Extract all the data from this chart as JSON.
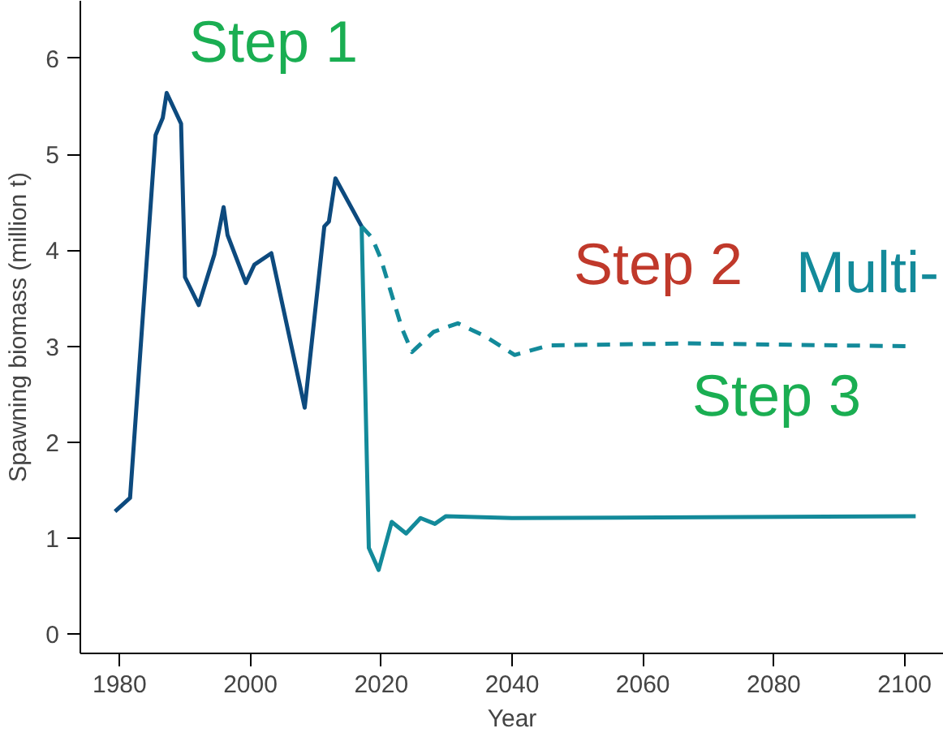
{
  "chart_data": {
    "type": "line",
    "xlabel": "Year",
    "ylabel": "Spawning biomass (million t)",
    "xlim": [
      1974,
      2106
    ],
    "ylim": [
      -0.2,
      6.6
    ],
    "xticks": [
      1980,
      2000,
      2020,
      2040,
      2060,
      2080,
      2100
    ],
    "yticks": [
      0,
      1,
      2,
      3,
      4,
      5,
      6
    ],
    "grid": false,
    "marker": "none",
    "series": [
      {
        "color": "#0d4a7e",
        "line_style": "solid",
        "x": [
          1979.3,
          1981.6,
          1985.5,
          1986.6,
          1987.2,
          1989.4,
          1990.0,
          1992.1,
          1994.5,
          1995.9,
          1996.5,
          1999.3,
          2000.6,
          2003.2,
          2008.3,
          2011.3,
          2012.0,
          2013.0,
          2017.0
        ],
        "values": [
          1.28,
          1.42,
          5.2,
          5.38,
          5.64,
          5.32,
          3.72,
          3.43,
          3.96,
          4.45,
          4.16,
          3.66,
          3.85,
          3.97,
          2.36,
          4.25,
          4.3,
          4.75,
          4.25
        ]
      },
      {
        "color": "#138a9a",
        "line_style": "dashed",
        "x": [
          2017.0,
          2018.6,
          2019.9,
          2023.2,
          2024.7,
          2028.0,
          2031.7,
          2036.0,
          2040.4,
          2045.7,
          2066.7,
          2100.9
        ],
        "values": [
          4.25,
          4.13,
          3.92,
          3.18,
          2.94,
          3.15,
          3.24,
          3.1,
          2.91,
          3.01,
          3.03,
          3.0
        ]
      },
      {
        "color": "#138a9a",
        "line_style": "solid",
        "x": [
          2017.0,
          2018.1,
          2019.6,
          2021.6,
          2023.8,
          2026.0,
          2028.2,
          2029.9,
          2040.0,
          2101.7
        ],
        "values": [
          4.25,
          0.9,
          0.67,
          1.17,
          1.05,
          1.21,
          1.15,
          1.23,
          1.21,
          1.23
        ]
      }
    ],
    "annotations": [
      "Step 1",
      "Step 2",
      "Multi-",
      "Step 3"
    ]
  }
}
